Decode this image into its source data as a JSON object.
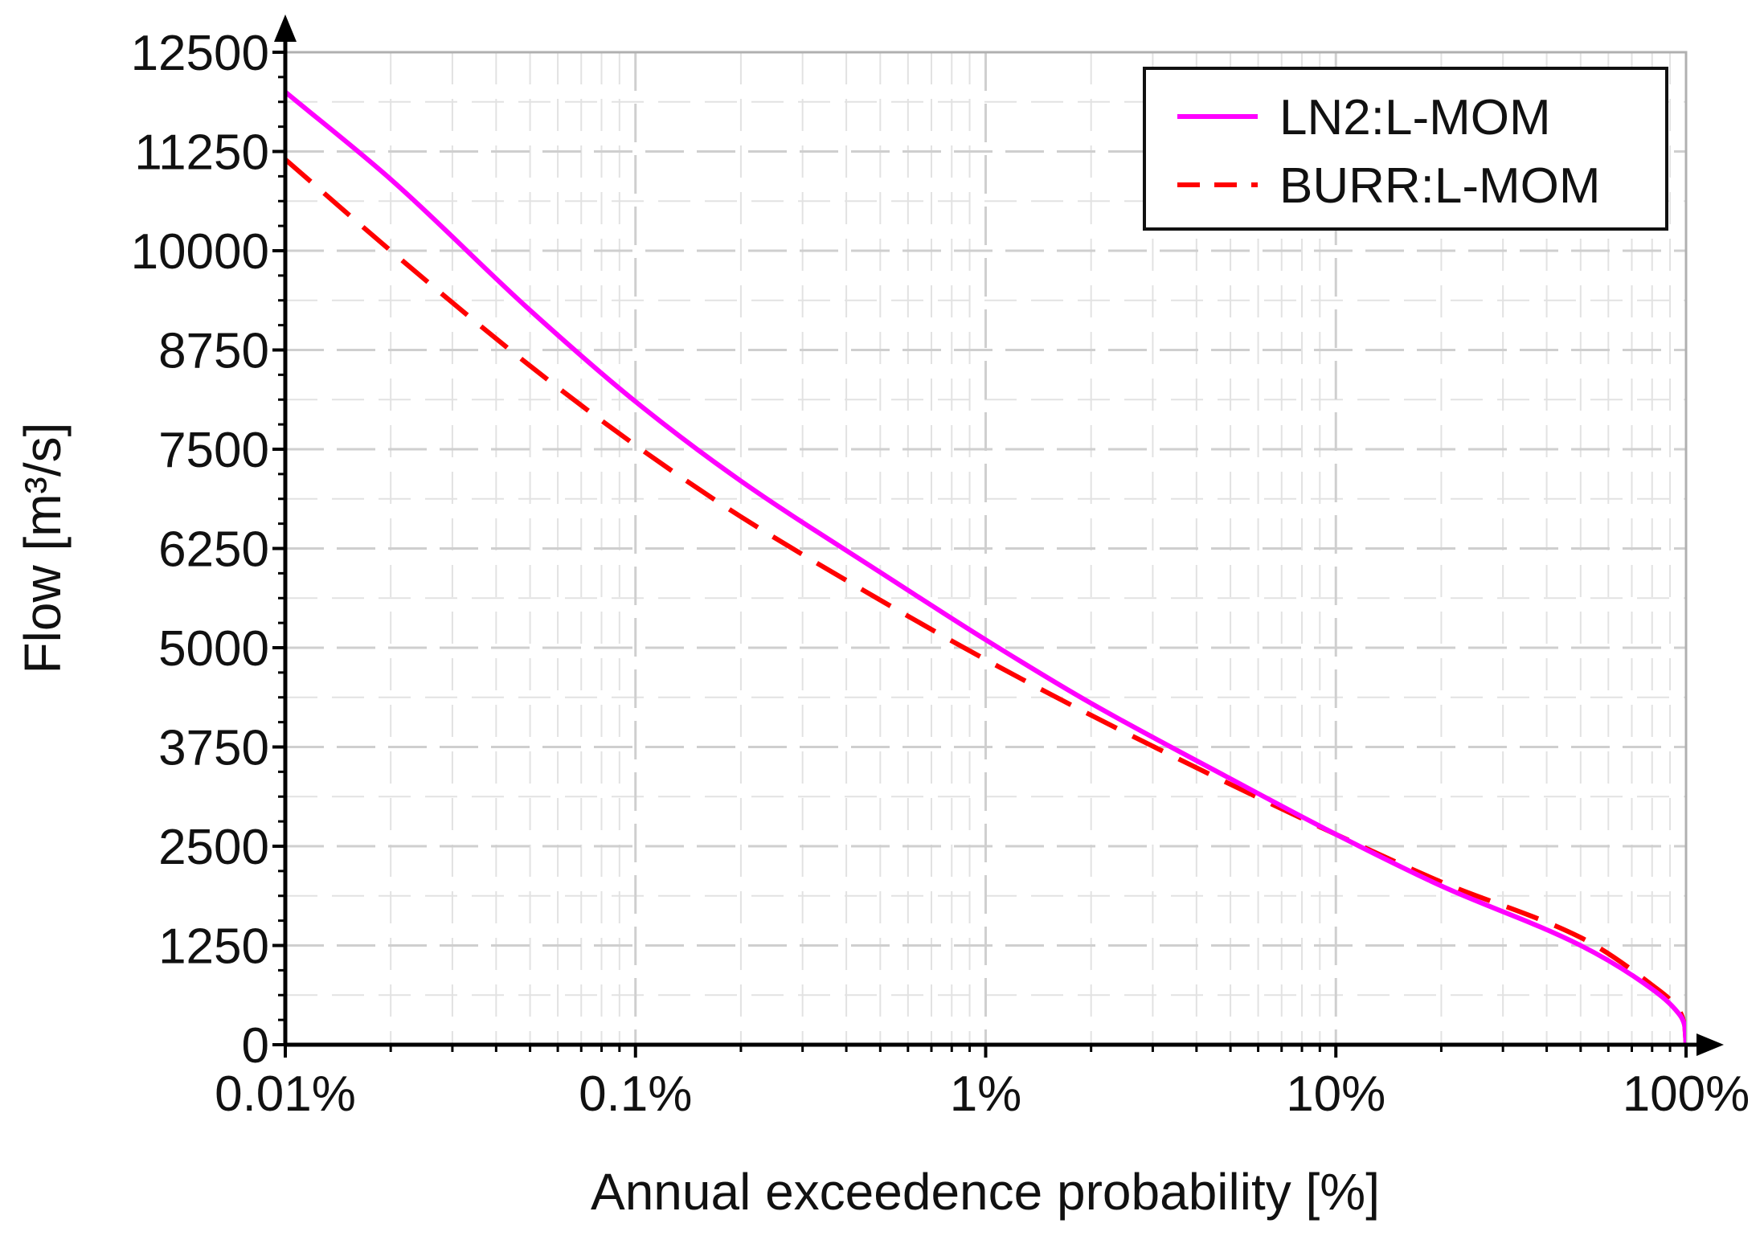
{
  "chart_data": {
    "type": "line",
    "title": "",
    "xlabel": "Annual exceedence probability [%]",
    "ylabel": "Flow [m³/s]",
    "x_scale": "log",
    "xlim": [
      0.01,
      100
    ],
    "ylim": [
      0,
      12500
    ],
    "grid": true,
    "legend_position": "top-right",
    "x_ticks": [
      {
        "value": 0.01,
        "label": "0.01%"
      },
      {
        "value": 0.1,
        "label": "0.1%"
      },
      {
        "value": 1,
        "label": "1%"
      },
      {
        "value": 10,
        "label": "10%"
      },
      {
        "value": 100,
        "label": "100%"
      }
    ],
    "y_ticks": [
      {
        "value": 0,
        "label": "0"
      },
      {
        "value": 1250,
        "label": "1250"
      },
      {
        "value": 2500,
        "label": "2500"
      },
      {
        "value": 3750,
        "label": "3750"
      },
      {
        "value": 5000,
        "label": "5000"
      },
      {
        "value": 6250,
        "label": "6250"
      },
      {
        "value": 7500,
        "label": "7500"
      },
      {
        "value": 8750,
        "label": "8750"
      },
      {
        "value": 10000,
        "label": "10000"
      },
      {
        "value": 11250,
        "label": "11250"
      },
      {
        "value": 12500,
        "label": "12500"
      }
    ],
    "series": [
      {
        "name": "LN2:L-MOM",
        "color": "#ff00ff",
        "dash": "solid",
        "points": [
          [
            0.01,
            12000
          ],
          [
            0.02,
            10900
          ],
          [
            0.05,
            9250
          ],
          [
            0.1,
            8100
          ],
          [
            0.2,
            7100
          ],
          [
            0.5,
            5950
          ],
          [
            1,
            5100
          ],
          [
            2,
            4300
          ],
          [
            5,
            3350
          ],
          [
            10,
            2650
          ],
          [
            20,
            2000
          ],
          [
            50,
            1250
          ],
          [
            80,
            700
          ],
          [
            95,
            400
          ],
          [
            99,
            250
          ],
          [
            100,
            0
          ]
        ]
      },
      {
        "name": "BURR:L-MOM",
        "color": "#ff0000",
        "dash": "dashed",
        "points": [
          [
            0.01,
            11150
          ],
          [
            0.02,
            10000
          ],
          [
            0.05,
            8550
          ],
          [
            0.1,
            7550
          ],
          [
            0.2,
            6650
          ],
          [
            0.5,
            5600
          ],
          [
            1,
            4850
          ],
          [
            2,
            4150
          ],
          [
            5,
            3280
          ],
          [
            10,
            2650
          ],
          [
            20,
            2050
          ],
          [
            50,
            1350
          ],
          [
            80,
            750
          ],
          [
            95,
            450
          ],
          [
            99,
            250
          ],
          [
            100,
            0
          ]
        ]
      }
    ]
  }
}
